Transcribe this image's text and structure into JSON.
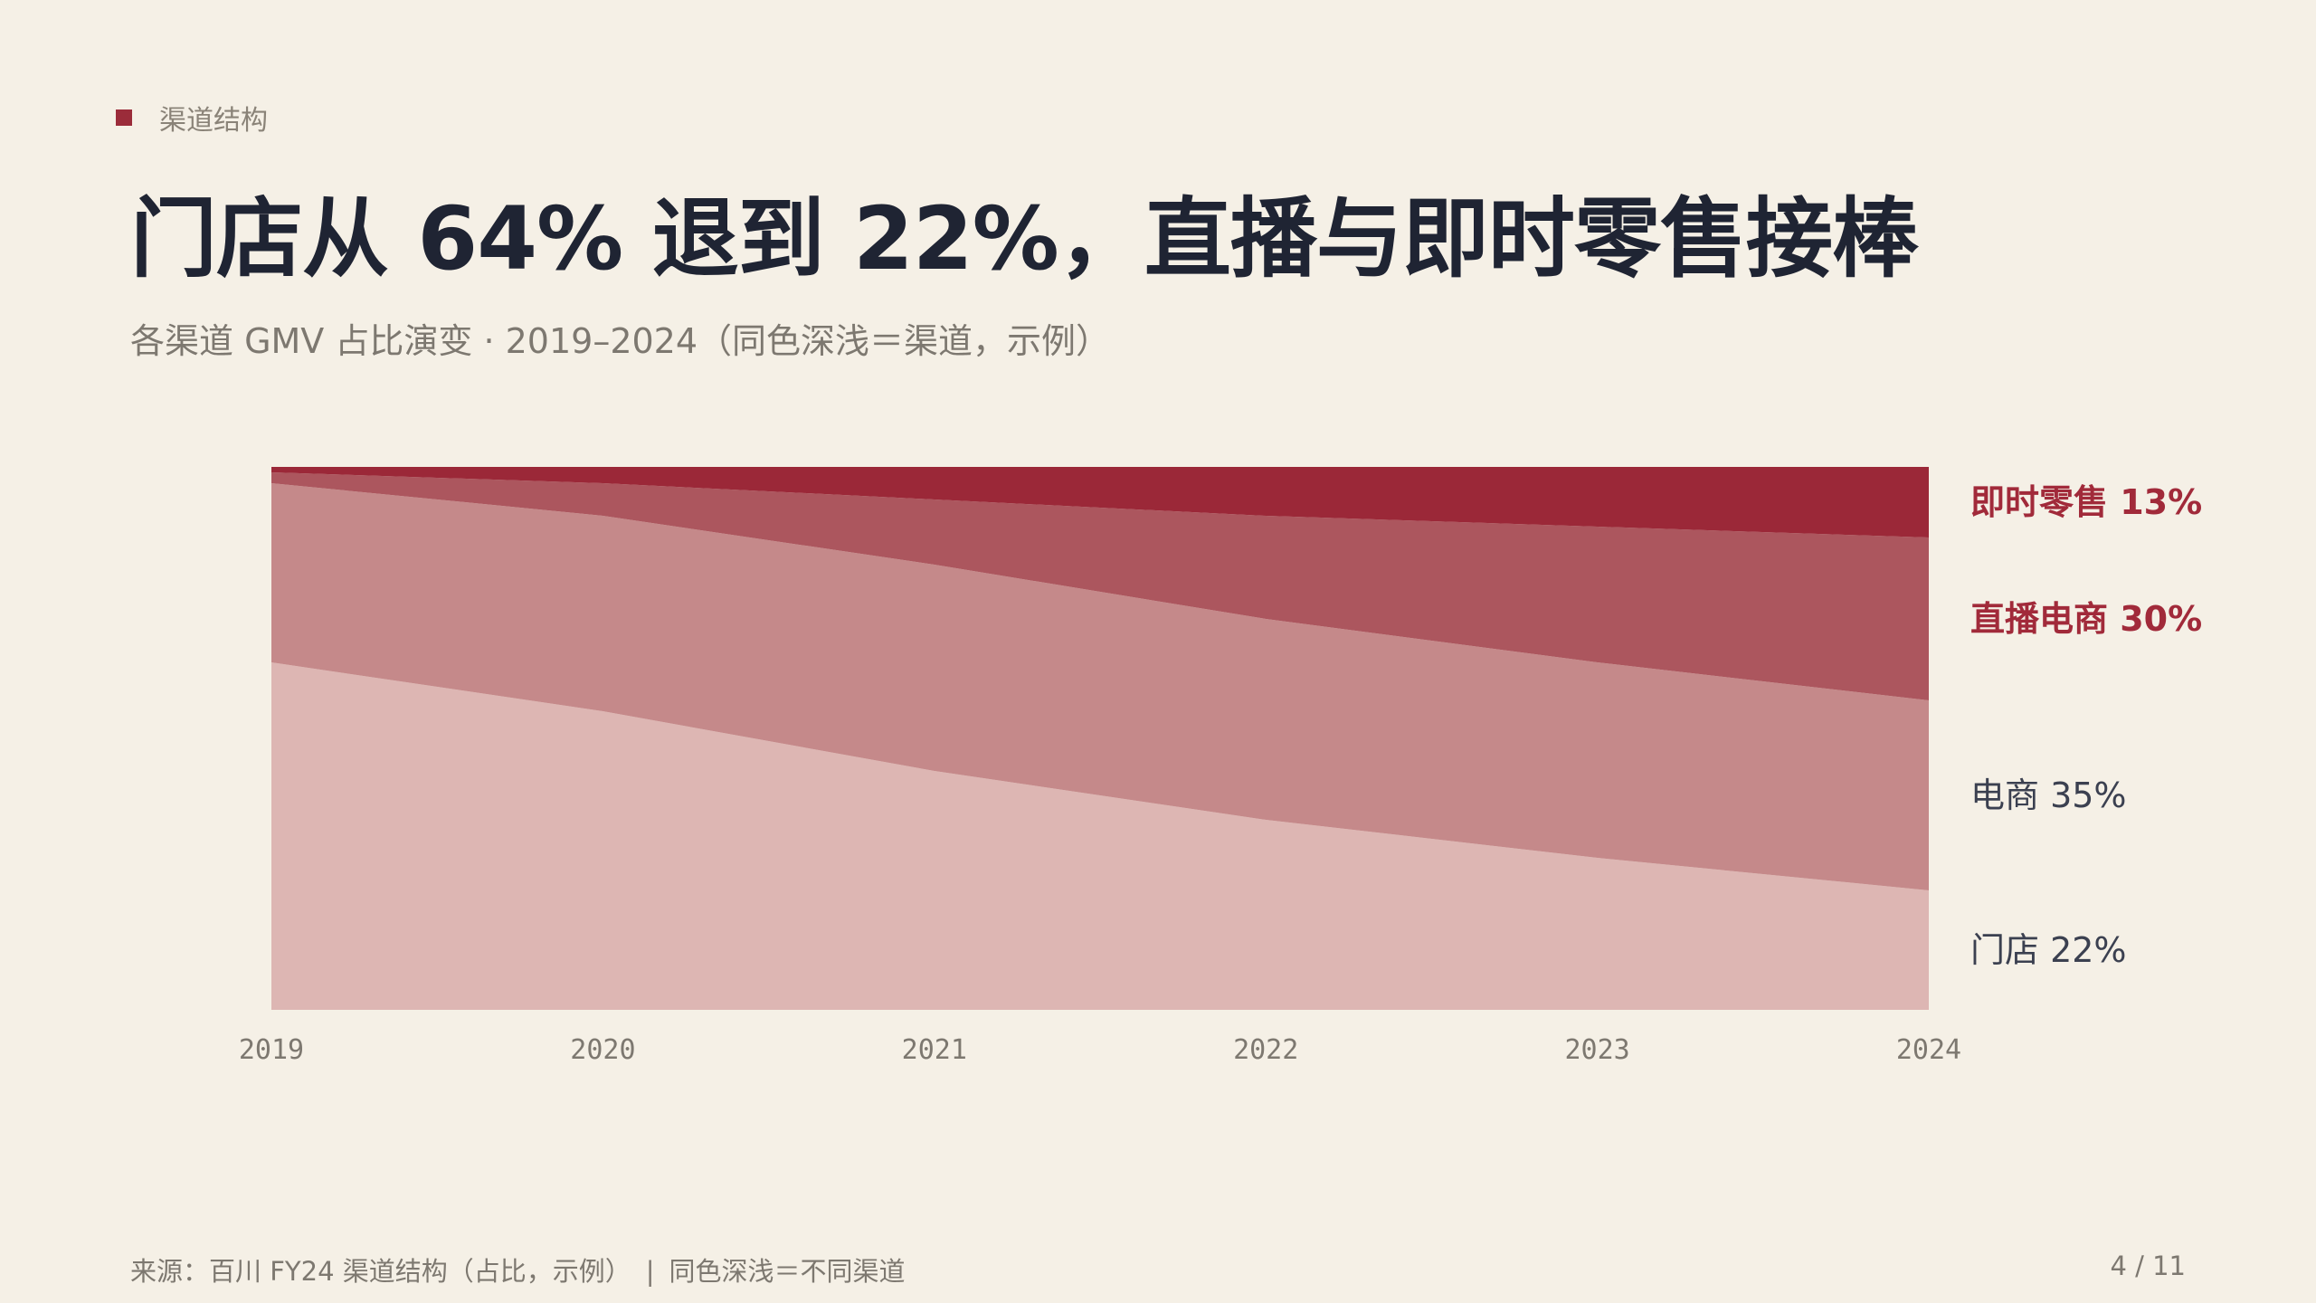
{
  "kicker": "渠道结构",
  "title": "门店从 64% 退到 22%，直播与即时零售接棒",
  "subtitle": "各渠道 GMV 占比演变 · 2019–2024（同色深浅＝渠道，示例）",
  "footer": {
    "source": "来源：百川 FY24 渠道结构（占比，示例）",
    "divider": "|",
    "note": "同色深浅＝不同渠道"
  },
  "pager": "4 / 11",
  "colors": {
    "background": "#f5f0e6",
    "accent": "#9b2c3a",
    "store": "#ddb6b3",
    "ecommerce": "#c5898a",
    "livestream": "#ac565e",
    "instant": "#9b2838",
    "label_dark": "#3b4050",
    "label_accent": "#a12a3a"
  },
  "chart_data": {
    "type": "area",
    "stacked": true,
    "normalized": true,
    "x": [
      "2019",
      "2020",
      "2021",
      "2022",
      "2023",
      "2024"
    ],
    "ylim": [
      0,
      100
    ],
    "series": [
      {
        "key": "store",
        "name": "门店",
        "values": [
          64,
          55,
          44,
          35,
          28,
          22
        ],
        "label": "门店 22%"
      },
      {
        "key": "ecommerce",
        "name": "电商",
        "values": [
          33,
          36,
          38,
          37,
          36,
          35
        ],
        "label": "电商 35%"
      },
      {
        "key": "livestream",
        "name": "直播电商",
        "values": [
          2,
          6,
          12,
          19,
          25,
          30
        ],
        "label": "直播电商 30%"
      },
      {
        "key": "instant",
        "name": "即时零售",
        "values": [
          1,
          3,
          6,
          9,
          11,
          13
        ],
        "label": "即时零售 13%"
      }
    ]
  }
}
